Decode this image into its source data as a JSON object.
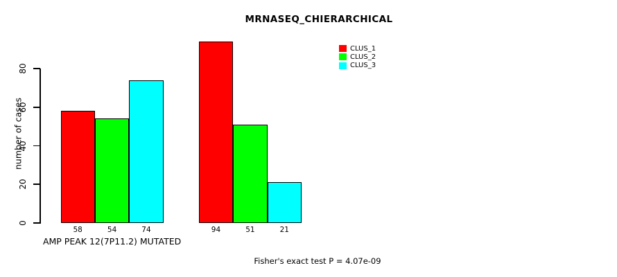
{
  "chart_data": {
    "type": "bar",
    "title": "MRNASEQ_CHIERARCHICAL",
    "ylabel": "number of cases",
    "xlabel": "AMP PEAK 12(7P11.2) MUTATED",
    "ylim": [
      0,
      80
    ],
    "yticks": [
      0,
      20,
      40,
      60,
      80
    ],
    "grid": false,
    "legend_position": "top-right",
    "series": [
      {
        "name": "CLUS_1",
        "color": "#ff0000",
        "values": [
          58,
          94
        ]
      },
      {
        "name": "CLUS_2",
        "color": "#00ff00",
        "values": [
          54,
          51
        ]
      },
      {
        "name": "CLUS_3",
        "color": "#00ffff",
        "values": [
          74,
          21
        ]
      }
    ],
    "groups": [
      {
        "label": "AMP PEAK 12(7P11.2) MUTATED",
        "values": [
          58,
          54,
          74
        ]
      },
      {
        "label": "",
        "values": [
          94,
          51,
          21
        ]
      }
    ],
    "bar_value_labels_shown": true,
    "annotation": "Fisher's exact test P = 4.07e-09"
  },
  "legend": {
    "items": [
      {
        "label": "CLUS_1",
        "color": "#ff0000"
      },
      {
        "label": "CLUS_2",
        "color": "#00ff00"
      },
      {
        "label": "CLUS_3",
        "color": "#00ffff"
      }
    ]
  },
  "colors": {
    "background": "#ffffff",
    "axis": "#000000",
    "bar_border": "#000000"
  }
}
